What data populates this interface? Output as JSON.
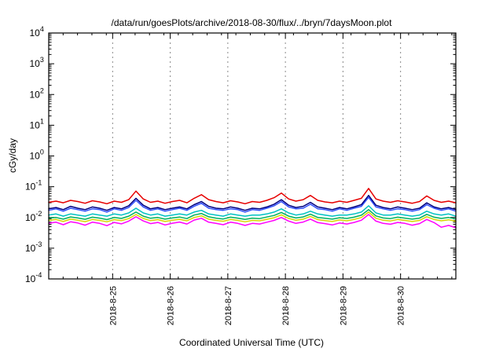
{
  "page": {
    "background": "#ffffff"
  },
  "chart_data": {
    "type": "line",
    "title": "/data/run/goesPlots/archive/2018-08-30/flux/../bryn/7daysMoon.plot",
    "xlabel": "Coordinated Universal Time (UTC)",
    "ylabel": "cGy/day",
    "y_scale": "log",
    "ylim": [
      0.0001,
      10000.0
    ],
    "y_tick_exponents": [
      4,
      3,
      2,
      1,
      0,
      -1,
      -2,
      -3,
      -4
    ],
    "x_span_days": 7.07,
    "x_minor_step_days": 0.25,
    "grid": "vertical-dashed",
    "grid_color": "#8a8a8a",
    "axis_color": "#000000",
    "x_ticks": [
      {
        "t": 1.11,
        "label": "2018-8-25"
      },
      {
        "t": 2.11,
        "label": "2018-8-26"
      },
      {
        "t": 3.11,
        "label": "2018-8-27"
      },
      {
        "t": 4.11,
        "label": "2018-8-28"
      },
      {
        "t": 5.11,
        "label": "2018-8-29"
      },
      {
        "t": 6.11,
        "label": "2018-8-30"
      }
    ],
    "value_scale": 0.001,
    "series": [
      {
        "name": "yellow",
        "color": "#d6d600",
        "values": [
          8,
          8.6,
          7.4,
          8.8,
          8.1,
          7.3,
          8.6,
          8,
          7.2,
          8.5,
          7.9,
          9.2,
          12.5,
          9.3,
          7.9,
          8.5,
          7.4,
          8.1,
          8.7,
          7.8,
          10,
          11.3,
          8.8,
          8,
          7.5,
          8.6,
          8,
          7.2,
          8,
          7.8,
          8.7,
          9.8,
          12.2,
          9.3,
          8.1,
          8.8,
          10.8,
          8.5,
          7.9,
          7.4,
          8.3,
          7.8,
          8.6,
          10,
          15,
          9.4,
          8.1,
          7.7,
          8.6,
          8,
          7.4,
          8,
          10.6,
          8.6,
          7.8,
          8.4,
          7.5
        ]
      },
      {
        "name": "green",
        "color": "#00b25c",
        "values": [
          9.5,
          10,
          8.8,
          10.4,
          9.6,
          8.7,
          10.2,
          9.5,
          8.5,
          10,
          9.3,
          11,
          15,
          11,
          9.4,
          10,
          8.8,
          9.6,
          10.3,
          9.2,
          12,
          13.5,
          10.5,
          9.5,
          8.9,
          10.2,
          9.5,
          8.6,
          9.5,
          9.2,
          10.3,
          11.6,
          14.5,
          11,
          9.6,
          10.4,
          12.8,
          10,
          9.4,
          8.8,
          9.8,
          9.3,
          10.2,
          11.8,
          18,
          11.2,
          9.6,
          9.2,
          10.2,
          9.5,
          8.8,
          9.5,
          12.6,
          10.2,
          9.3,
          10,
          8.9
        ]
      },
      {
        "name": "cyan",
        "color": "#00c2c2",
        "values": [
          12,
          13,
          11,
          13,
          12,
          11,
          13,
          12,
          11,
          13,
          12,
          14,
          20,
          14,
          12,
          13,
          11,
          12,
          13,
          12,
          15,
          17,
          13,
          12,
          11,
          13,
          12,
          11,
          12,
          12,
          13,
          15,
          19,
          14,
          12,
          13,
          16,
          13,
          12,
          11,
          12,
          12,
          13,
          15,
          24,
          14,
          12,
          12,
          13,
          12,
          11,
          12,
          16,
          13,
          12,
          13,
          11
        ]
      },
      {
        "name": "blue",
        "color": "#2f4fff",
        "values": [
          17,
          19,
          16,
          20,
          18,
          16,
          19,
          18,
          15,
          19,
          17,
          21,
          36,
          22,
          17,
          19,
          16,
          18,
          20,
          17,
          23,
          29,
          20,
          18,
          17,
          19,
          18,
          15,
          18,
          17,
          20,
          24,
          33,
          22,
          19,
          20,
          27,
          19,
          18,
          16,
          19,
          17,
          20,
          23,
          45,
          22,
          19,
          17,
          19,
          18,
          16,
          18,
          26,
          20,
          17,
          19,
          16
        ]
      },
      {
        "name": "navy",
        "color": "#000080",
        "values": [
          19,
          21,
          18,
          23,
          20,
          18,
          22,
          20,
          17,
          21,
          19,
          24,
          42,
          25,
          19,
          21,
          18,
          20,
          22,
          19,
          26,
          33,
          23,
          20,
          19,
          22,
          20,
          17,
          20,
          19,
          22,
          27,
          38,
          25,
          21,
          23,
          31,
          22,
          20,
          18,
          21,
          19,
          22,
          26,
          52,
          25,
          21,
          19,
          22,
          20,
          18,
          20,
          30,
          22,
          19,
          21,
          18
        ]
      },
      {
        "name": "magenta",
        "color": "#ff00ff",
        "values": [
          6.5,
          7,
          5.8,
          7.2,
          6.6,
          5.6,
          7,
          6.4,
          5.4,
          6.9,
          6.2,
          7.6,
          10.5,
          7.7,
          6.3,
          6.9,
          5.7,
          6.5,
          7.1,
          6.1,
          8.2,
          9.4,
          7,
          6.4,
          5.8,
          7,
          6.4,
          5.5,
          6.4,
          6.1,
          7,
          8,
          10,
          7.6,
          6.4,
          7.1,
          8.8,
          6.8,
          6.3,
          5.7,
          6.6,
          6.1,
          6.9,
          8.1,
          12.5,
          7.6,
          6.4,
          6,
          6.9,
          6.4,
          5.6,
          6.3,
          8.6,
          6.8,
          4.8,
          5.5,
          4.6
        ]
      },
      {
        "name": "red",
        "color": "#e60000",
        "values": [
          31,
          34,
          30,
          36,
          33,
          29,
          35,
          32,
          28,
          34,
          31,
          38,
          72,
          40,
          31,
          34,
          29,
          33,
          36,
          30,
          42,
          55,
          38,
          33,
          30,
          35,
          32,
          28,
          33,
          31,
          36,
          44,
          62,
          40,
          34,
          38,
          52,
          36,
          32,
          30,
          34,
          31,
          36,
          42,
          88,
          40,
          34,
          31,
          35,
          32,
          29,
          33,
          50,
          36,
          31,
          34,
          30
        ]
      }
    ]
  }
}
